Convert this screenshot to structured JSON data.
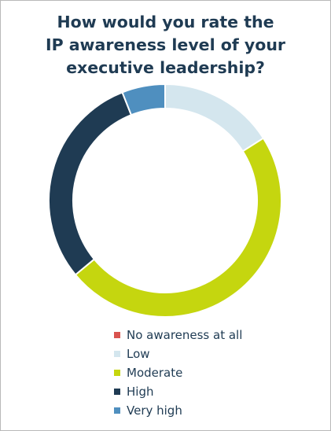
{
  "chart_data": {
    "type": "pie",
    "title_lines": [
      "How would you rate the",
      "IP awareness level of your",
      "executive leadership?"
    ],
    "categories": [
      "No awareness at all",
      "Low",
      "Moderate",
      "High",
      "Very high"
    ],
    "values": [
      0,
      16,
      48,
      30,
      6
    ],
    "unit": "%",
    "colors": [
      "#d9534f",
      "#d4e6ee",
      "#c5d60f",
      "#1f3b53",
      "#4f8fbf"
    ],
    "legend_position": "bottom",
    "donut": true
  }
}
